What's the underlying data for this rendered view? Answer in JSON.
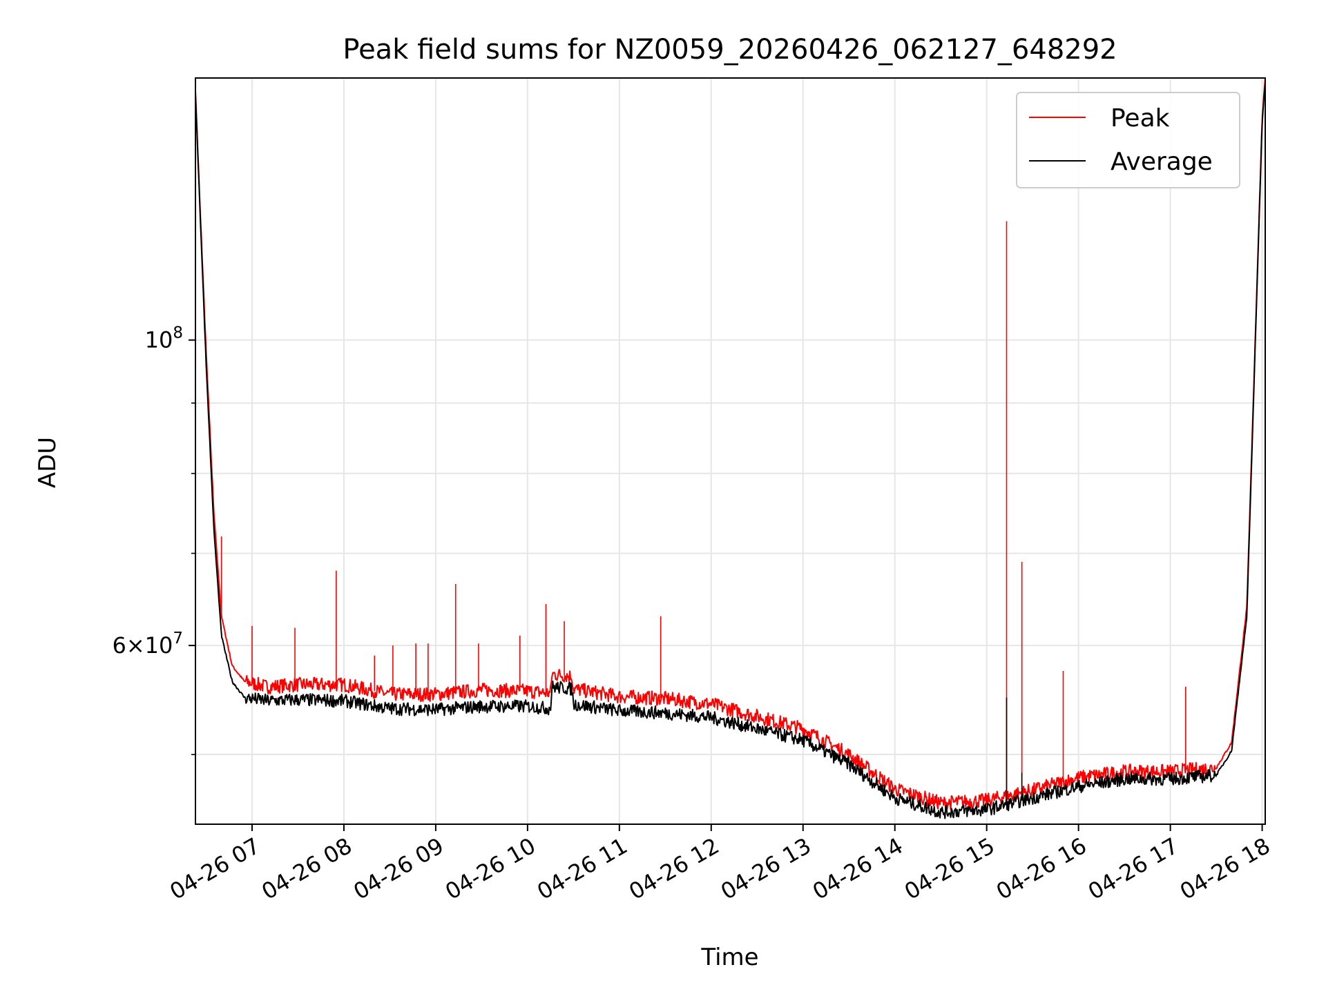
{
  "chart_data": {
    "type": "line",
    "title": "Peak field sums for NZ0059_20260426_062127_648292",
    "xlabel": "Time",
    "ylabel": "ADU",
    "x_axis": "time",
    "y_scale": "log",
    "xlim": [
      "2026-04-26 06:23",
      "2026-04-26 18:02"
    ],
    "ylim": [
      44500000,
      155000000
    ],
    "x_ticks": [
      {
        "value": "2026-04-26 07:00",
        "label": "04-26 07"
      },
      {
        "value": "2026-04-26 08:00",
        "label": "04-26 08"
      },
      {
        "value": "2026-04-26 09:00",
        "label": "04-26 09"
      },
      {
        "value": "2026-04-26 10:00",
        "label": "04-26 10"
      },
      {
        "value": "2026-04-26 11:00",
        "label": "04-26 11"
      },
      {
        "value": "2026-04-26 12:00",
        "label": "04-26 12"
      },
      {
        "value": "2026-04-26 13:00",
        "label": "04-26 13"
      },
      {
        "value": "2026-04-26 14:00",
        "label": "04-26 14"
      },
      {
        "value": "2026-04-26 15:00",
        "label": "04-26 15"
      },
      {
        "value": "2026-04-26 16:00",
        "label": "04-26 16"
      },
      {
        "value": "2026-04-26 17:00",
        "label": "04-26 17"
      },
      {
        "value": "2026-04-26 18:00",
        "label": "04-26 18"
      }
    ],
    "y_major_ticks": [
      {
        "value": 100000000,
        "base": "10",
        "exp": "8",
        "mantissa": ""
      },
      {
        "value": 60000000,
        "base": "10",
        "exp": "7",
        "mantissa": "6"
      }
    ],
    "y_minor_ticks": [
      50000000,
      70000000,
      80000000,
      90000000
    ],
    "grid": true,
    "legend_position": "top-right",
    "series": [
      {
        "name": "Peak",
        "color": "#ff0000",
        "x": [
          "2026-04-26 06:23",
          "2026-04-26 06:26",
          "2026-04-26 06:30",
          "2026-04-26 06:35",
          "2026-04-26 06:40",
          "2026-04-26 06:47",
          "2026-04-26 06:55",
          "2026-04-26 07:10",
          "2026-04-26 07:30",
          "2026-04-26 08:00",
          "2026-04-26 08:30",
          "2026-04-26 09:00",
          "2026-04-26 09:30",
          "2026-04-26 10:00",
          "2026-04-26 10:15",
          "2026-04-26 10:16",
          "2026-04-26 10:29",
          "2026-04-26 10:30",
          "2026-04-26 11:00",
          "2026-04-26 11:30",
          "2026-04-26 12:00",
          "2026-04-26 12:30",
          "2026-04-26 13:00",
          "2026-04-26 13:30",
          "2026-04-26 14:00",
          "2026-04-26 14:30",
          "2026-04-26 15:00",
          "2026-04-26 15:30",
          "2026-04-26 16:00",
          "2026-04-26 16:30",
          "2026-04-26 17:00",
          "2026-04-26 17:30",
          "2026-04-26 17:40",
          "2026-04-26 17:50",
          "2026-04-26 18:00",
          "2026-04-26 18:02"
        ],
        "y": [
          152000000,
          125000000,
          98000000,
          75000000,
          63000000,
          58000000,
          56500000,
          56000000,
          56200000,
          56200000,
          55300000,
          55300000,
          55700000,
          55600000,
          55400000,
          57200000,
          57000000,
          55800000,
          55100000,
          54900000,
          54400000,
          53300000,
          52200000,
          50000000,
          47200000,
          46100000,
          46300000,
          47100000,
          48100000,
          48600000,
          48600000,
          48900000,
          51000000,
          64000000,
          145000000,
          155000000
        ],
        "spikes": [
          {
            "x": "2026-04-26 06:40",
            "y": 72000000
          },
          {
            "x": "2026-04-26 07:00",
            "y": 62000000
          },
          {
            "x": "2026-04-26 07:28",
            "y": 61800000
          },
          {
            "x": "2026-04-26 07:55",
            "y": 68000000
          },
          {
            "x": "2026-04-26 08:20",
            "y": 59000000
          },
          {
            "x": "2026-04-26 08:32",
            "y": 60000000
          },
          {
            "x": "2026-04-26 08:47",
            "y": 60200000
          },
          {
            "x": "2026-04-26 08:55",
            "y": 60200000
          },
          {
            "x": "2026-04-26 09:13",
            "y": 66500000
          },
          {
            "x": "2026-04-26 09:28",
            "y": 60200000
          },
          {
            "x": "2026-04-26 09:55",
            "y": 61000000
          },
          {
            "x": "2026-04-26 10:12",
            "y": 64300000
          },
          {
            "x": "2026-04-26 10:24",
            "y": 62500000
          },
          {
            "x": "2026-04-26 11:27",
            "y": 63000000
          },
          {
            "x": "2026-04-26 15:13",
            "y": 122000000
          },
          {
            "x": "2026-04-26 15:23",
            "y": 69000000
          },
          {
            "x": "2026-04-26 15:50",
            "y": 57500000
          },
          {
            "x": "2026-04-26 17:10",
            "y": 56000000
          }
        ]
      },
      {
        "name": "Average",
        "color": "#000000",
        "x": [
          "2026-04-26 06:23",
          "2026-04-26 06:26",
          "2026-04-26 06:30",
          "2026-04-26 06:35",
          "2026-04-26 06:40",
          "2026-04-26 06:47",
          "2026-04-26 06:55",
          "2026-04-26 07:10",
          "2026-04-26 07:30",
          "2026-04-26 08:00",
          "2026-04-26 08:30",
          "2026-04-26 09:00",
          "2026-04-26 09:30",
          "2026-04-26 10:00",
          "2026-04-26 10:15",
          "2026-04-26 10:16",
          "2026-04-26 10:29",
          "2026-04-26 10:30",
          "2026-04-26 11:00",
          "2026-04-26 11:30",
          "2026-04-26 12:00",
          "2026-04-26 12:30",
          "2026-04-26 13:00",
          "2026-04-26 13:30",
          "2026-04-26 14:00",
          "2026-04-26 14:30",
          "2026-04-26 15:00",
          "2026-04-26 15:30",
          "2026-04-26 16:00",
          "2026-04-26 16:30",
          "2026-04-26 17:00",
          "2026-04-26 17:30",
          "2026-04-26 17:40",
          "2026-04-26 17:50",
          "2026-04-26 18:00",
          "2026-04-26 18:02"
        ],
        "y": [
          151000000,
          124000000,
          96000000,
          73000000,
          61000000,
          56500000,
          55000000,
          54700000,
          54800000,
          54700000,
          54000000,
          53900000,
          54200000,
          54200000,
          54000000,
          56000000,
          55800000,
          54400000,
          53800000,
          53600000,
          53200000,
          52200000,
          51200000,
          49200000,
          46500000,
          45400000,
          45600000,
          46500000,
          47400000,
          48000000,
          48000000,
          48300000,
          50300000,
          63000000,
          144000000,
          154000000
        ],
        "spikes": [
          {
            "x": "2026-04-26 15:13",
            "y": 55000000
          },
          {
            "x": "2026-04-26 15:23",
            "y": 48500000
          }
        ]
      }
    ]
  }
}
